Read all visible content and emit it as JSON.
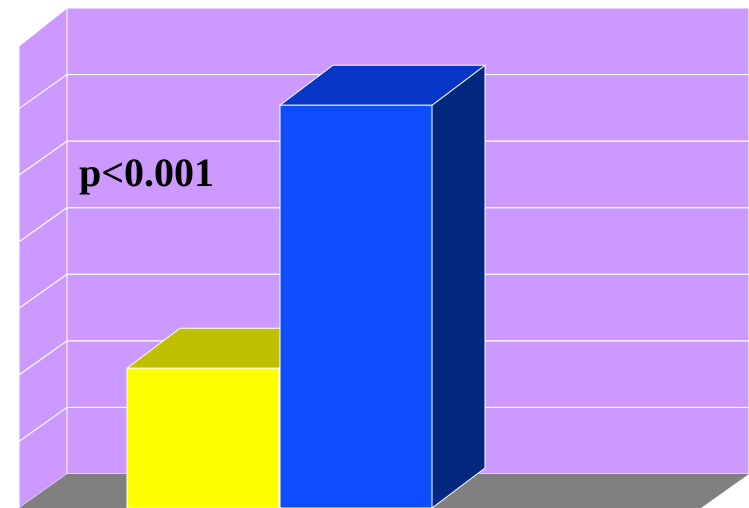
{
  "chart_data": {
    "type": "bar",
    "categories": [
      "",
      ""
    ],
    "values": [
      2.1,
      6.05
    ],
    "ylim": [
      0,
      7
    ],
    "grid": true,
    "annotations": [
      "p<0.001"
    ],
    "colors": {
      "wall": "#CC99FF",
      "floor": "#808080",
      "gridline": "#FFFFFF",
      "bar_fronts": [
        "#FFFF00",
        "#0D4DFD"
      ],
      "bar_tops": [
        "#BFBF00",
        "#0536C6"
      ],
      "bar_sides": [
        "#9F9F00",
        "#02287F"
      ]
    }
  }
}
